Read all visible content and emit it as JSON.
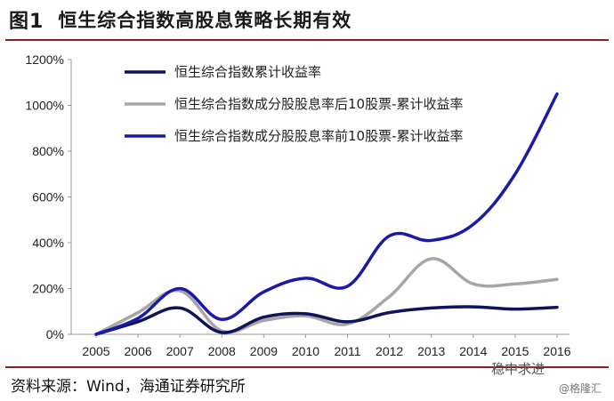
{
  "header": {
    "figure_no": "图1",
    "title": "恒生综合指数高股息策略长期有效"
  },
  "footer": {
    "source": "资料来源：Wind，海通证券研究所"
  },
  "watermark": {
    "channel": "稳中求进",
    "brand": "@格隆汇"
  },
  "chart_data": {
    "type": "line",
    "categories": [
      "2005",
      "2006",
      "2007",
      "2008",
      "2009",
      "2010",
      "2011",
      "2012",
      "2013",
      "2014",
      "2015",
      "2016"
    ],
    "ylim": [
      0,
      1200
    ],
    "yticks": [
      "0%",
      "200%",
      "400%",
      "600%",
      "800%",
      "1000%",
      "1200%"
    ],
    "legend_position": "top-left",
    "series": [
      {
        "name": "恒生综合指数累计收益率",
        "color": "#0d1457",
        "values": [
          0,
          55,
          115,
          8,
          75,
          90,
          55,
          95,
          115,
          120,
          110,
          118
        ]
      },
      {
        "name": "恒生综合指数成分股股息率后10股票-累计收益率",
        "color": "#a6a6a6",
        "values": [
          0,
          95,
          190,
          15,
          60,
          80,
          45,
          165,
          330,
          220,
          220,
          240
        ]
      },
      {
        "name": "恒生综合指数成分股股息率前10股票-累计收益率",
        "color": "#1a1aa8",
        "values": [
          0,
          70,
          200,
          65,
          185,
          245,
          210,
          430,
          410,
          480,
          700,
          1050
        ]
      }
    ]
  }
}
